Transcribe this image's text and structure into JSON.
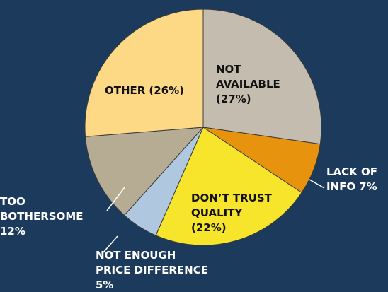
{
  "chart_data": {
    "type": "pie",
    "categories": [
      "NOT AVAILABLE",
      "LACK OF INFO",
      "DON’T TRUST QUALITY",
      "NOT ENOUGH PRICE DIFFERENCE",
      "TOO BOTHERSOME",
      "OTHER"
    ],
    "values": [
      27,
      7,
      22,
      5,
      12,
      26
    ],
    "value_labels": [
      "(27%)",
      "7%",
      "(22%)",
      "5%",
      "12%",
      "(26%)"
    ],
    "colors": [
      "#c4bdaf",
      "#e8930e",
      "#f7e52c",
      "#afc7df",
      "#b6ab93",
      "#fdd985"
    ]
  }
}
